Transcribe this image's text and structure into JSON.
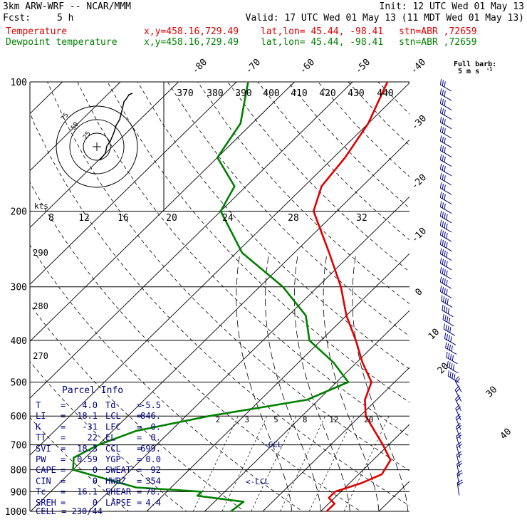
{
  "header": {
    "model": "3km ARW-WRF -- NCAR/MMM",
    "init": "Init: 12 UTC Wed 01 May 13",
    "fcst_label": "Fcst:",
    "fcst_value": "5 h",
    "valid": "Valid: 17 UTC Wed 01 May 13 (11 MDT Wed 01 May 13)",
    "temp_label": "Temperature",
    "dew_label": "Dewpoint temperature",
    "xy": "x,y=458.16,729.49",
    "latlon": "lat,lon= 45.44, -98.41",
    "stn": "stn=ABR ,72659"
  },
  "colors": {
    "temperature": "#e00000",
    "dewpoint": "#008000",
    "parcel": "#000080",
    "grid": "#000000"
  },
  "barb_legend": {
    "title": "Full barb:",
    "value": "5 m s",
    "exp": "-1"
  },
  "chart_data": {
    "type": "line",
    "title": "",
    "pressure_levels": [
      100,
      200,
      300,
      400,
      500,
      600,
      700,
      800,
      900,
      1000
    ],
    "isotherm_labels": [
      "-80",
      "-70",
      "-60",
      "-50",
      "-40",
      "-30",
      "-20",
      "-10",
      "0",
      "10",
      "20",
      "30",
      "40"
    ],
    "theta_labels": [
      "370",
      "380",
      "390",
      "400",
      "410",
      "420",
      "430",
      "440"
    ],
    "theta_side_labels": [
      "290",
      "280",
      "270"
    ],
    "mixing_ratio_labels": [
      "2",
      "3",
      "5",
      "8",
      "12",
      "20"
    ],
    "hodograph": {
      "speed_unit": "kts",
      "speed_ticks": [
        "8",
        "12",
        "16",
        "20",
        "24",
        "28",
        "32"
      ],
      "ring_labels": [
        "25",
        "50",
        "75"
      ]
    },
    "series": [
      {
        "name": "Temperature",
        "points": [
          [
            1000,
            11
          ],
          [
            960,
            11
          ],
          [
            930,
            9
          ],
          [
            900,
            9
          ],
          [
            860,
            12
          ],
          [
            820,
            14
          ],
          [
            760,
            13
          ],
          [
            700,
            9
          ],
          [
            600,
            1
          ],
          [
            550,
            -2
          ],
          [
            500,
            -4
          ],
          [
            450,
            -9
          ],
          [
            400,
            -14
          ],
          [
            350,
            -20
          ],
          [
            300,
            -26
          ],
          [
            250,
            -34
          ],
          [
            200,
            -44
          ],
          [
            175,
            -47
          ],
          [
            150,
            -48
          ],
          [
            125,
            -50
          ],
          [
            100,
            -54
          ]
        ]
      },
      {
        "name": "Dewpoint temperature",
        "points": [
          [
            1000,
            -5.5
          ],
          [
            950,
            -5
          ],
          [
            920,
            -14
          ],
          [
            900,
            -14
          ],
          [
            880,
            -26
          ],
          [
            800,
            -40
          ],
          [
            750,
            -42
          ],
          [
            700,
            -40
          ],
          [
            650,
            -36
          ],
          [
            600,
            -26
          ],
          [
            550,
            -12
          ],
          [
            500,
            -8
          ],
          [
            450,
            -14
          ],
          [
            400,
            -22
          ],
          [
            350,
            -27
          ],
          [
            300,
            -36
          ],
          [
            250,
            -49
          ],
          [
            200,
            -60
          ],
          [
            175,
            -62
          ],
          [
            150,
            -70
          ],
          [
            125,
            -72
          ],
          [
            100,
            -78
          ]
        ]
      }
    ],
    "annotations": {
      "lcl": "<-LCL",
      "ccl": "-CCL"
    }
  },
  "parcel_info": {
    "title": "Parcel Info",
    "rows": [
      [
        "T",
        "4.0",
        "Td",
        "-5.5"
      ],
      [
        "LI",
        "18.1",
        "LCL",
        "846."
      ],
      [
        "K",
        "-31",
        "LFC",
        "0."
      ],
      [
        "TT",
        "22",
        "EL",
        "0."
      ],
      [
        "SVI",
        "18.3",
        "CCL",
        "699."
      ],
      [
        "PW",
        "0.59",
        "YGP",
        "0.0"
      ],
      [
        "CAPE",
        "0",
        "SWEAT",
        "92"
      ],
      [
        "CIN",
        "0",
        "HWBZ",
        "354"
      ],
      [
        "Tc",
        "16.1",
        "SHEAR",
        "78."
      ],
      [
        "SREH",
        "0",
        "LAPSE",
        "4.4"
      ]
    ],
    "cell": "CELL = 230/44"
  }
}
